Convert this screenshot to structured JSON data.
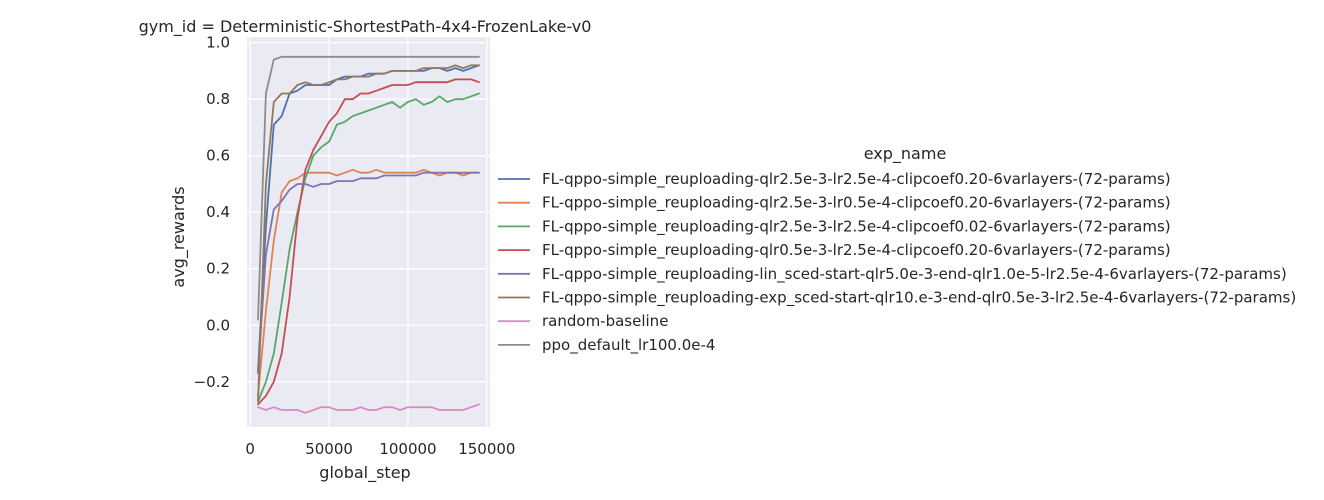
{
  "chart_data": {
    "type": "line",
    "title": "gym_id = Deterministic-ShortestPath-4x4-FrozenLake-v0",
    "xlabel": "global_step",
    "ylabel": "avg_rewards",
    "xlim": [
      -2000,
      152000
    ],
    "ylim": [
      -0.36,
      1.02
    ],
    "xticks": [
      0,
      50000,
      100000,
      150000
    ],
    "xtick_labels": [
      "0",
      "50000",
      "100000",
      "150000"
    ],
    "yticks": [
      -0.2,
      0.0,
      0.2,
      0.4,
      0.6,
      0.8,
      1.0
    ],
    "ytick_labels": [
      "−0.2",
      "0.0",
      "0.2",
      "0.4",
      "0.6",
      "0.8",
      "1.0"
    ],
    "grid": true,
    "legend_title": "exp_name",
    "legend_position": "right",
    "x": [
      5000,
      10000,
      15000,
      20000,
      25000,
      30000,
      35000,
      40000,
      45000,
      50000,
      55000,
      60000,
      65000,
      70000,
      75000,
      80000,
      85000,
      90000,
      95000,
      100000,
      105000,
      110000,
      115000,
      120000,
      125000,
      130000,
      135000,
      140000,
      145000
    ],
    "series": [
      {
        "name": "FL-qppo-simple_reuploading-qlr2.5e-3-lr2.5e-4-clipcoef0.20-6varlayers-(72-params)",
        "color": "#4c72b0",
        "values": [
          -0.16,
          0.35,
          0.71,
          0.74,
          0.82,
          0.83,
          0.85,
          0.85,
          0.85,
          0.85,
          0.87,
          0.88,
          0.88,
          0.88,
          0.89,
          0.89,
          0.89,
          0.9,
          0.9,
          0.9,
          0.9,
          0.9,
          0.91,
          0.91,
          0.9,
          0.91,
          0.9,
          0.91,
          0.92
        ]
      },
      {
        "name": "FL-qppo-simple_reuploading-qlr2.5e-3-lr0.5e-4-clipcoef0.20-6varlayers-(72-params)",
        "color": "#dd8452",
        "values": [
          -0.25,
          0.05,
          0.3,
          0.47,
          0.51,
          0.52,
          0.54,
          0.54,
          0.54,
          0.54,
          0.53,
          0.54,
          0.55,
          0.54,
          0.54,
          0.55,
          0.54,
          0.54,
          0.54,
          0.54,
          0.54,
          0.55,
          0.54,
          0.53,
          0.54,
          0.54,
          0.53,
          0.54,
          0.54
        ]
      },
      {
        "name": "FL-qppo-simple_reuploading-qlr2.5e-3-lr2.5e-4-clipcoef0.02-6varlayers-(72-params)",
        "color": "#55a868",
        "values": [
          -0.27,
          -0.2,
          -0.1,
          0.08,
          0.27,
          0.4,
          0.52,
          0.6,
          0.63,
          0.65,
          0.71,
          0.72,
          0.74,
          0.75,
          0.76,
          0.77,
          0.78,
          0.79,
          0.77,
          0.79,
          0.8,
          0.78,
          0.79,
          0.81,
          0.79,
          0.8,
          0.8,
          0.81,
          0.82
        ]
      },
      {
        "name": "FL-qppo-simple_reuploading-qlr0.5e-3-lr2.5e-4-clipcoef0.20-6varlayers-(72-params)",
        "color": "#c44e52",
        "values": [
          -0.28,
          -0.25,
          -0.2,
          -0.1,
          0.1,
          0.38,
          0.55,
          0.62,
          0.67,
          0.72,
          0.75,
          0.8,
          0.8,
          0.82,
          0.82,
          0.83,
          0.84,
          0.85,
          0.85,
          0.85,
          0.86,
          0.86,
          0.86,
          0.86,
          0.86,
          0.87,
          0.87,
          0.87,
          0.86
        ]
      },
      {
        "name": "FL-qppo-simple_reuploading-lin_sced-start-qlr5.0e-3-end-qlr1.0e-5-lr2.5e-4-6varlayers-(72-params)",
        "color": "#8172b3",
        "values": [
          -0.17,
          0.25,
          0.41,
          0.44,
          0.48,
          0.5,
          0.5,
          0.49,
          0.5,
          0.5,
          0.51,
          0.51,
          0.51,
          0.52,
          0.52,
          0.52,
          0.53,
          0.53,
          0.53,
          0.53,
          0.53,
          0.54,
          0.54,
          0.54,
          0.54,
          0.54,
          0.54,
          0.54,
          0.54
        ]
      },
      {
        "name": "FL-qppo-simple_reuploading-exp_sced-start-qlr10.e-3-end-qlr0.5e-3-lr2.5e-4-6varlayers-(72-params)",
        "color": "#937860",
        "values": [
          -0.27,
          0.5,
          0.79,
          0.82,
          0.82,
          0.85,
          0.86,
          0.85,
          0.85,
          0.86,
          0.87,
          0.87,
          0.88,
          0.88,
          0.88,
          0.89,
          0.89,
          0.9,
          0.9,
          0.9,
          0.9,
          0.91,
          0.91,
          0.91,
          0.91,
          0.92,
          0.91,
          0.92,
          0.92
        ]
      },
      {
        "name": "random-baseline",
        "color": "#da8bc3",
        "values": [
          -0.29,
          -0.3,
          -0.29,
          -0.3,
          -0.3,
          -0.3,
          -0.31,
          -0.3,
          -0.29,
          -0.29,
          -0.3,
          -0.3,
          -0.3,
          -0.29,
          -0.3,
          -0.3,
          -0.29,
          -0.29,
          -0.3,
          -0.29,
          -0.29,
          -0.29,
          -0.29,
          -0.3,
          -0.3,
          -0.3,
          -0.3,
          -0.29,
          -0.28
        ]
      },
      {
        "name": "ppo_default_lr100.0e-4",
        "color": "#8c8c8c",
        "values": [
          0.02,
          0.82,
          0.94,
          0.95,
          0.95,
          0.95,
          0.95,
          0.95,
          0.95,
          0.95,
          0.95,
          0.95,
          0.95,
          0.95,
          0.95,
          0.95,
          0.95,
          0.95,
          0.95,
          0.95,
          0.95,
          0.95,
          0.95,
          0.95,
          0.95,
          0.95,
          0.95,
          0.95,
          0.95
        ]
      }
    ]
  }
}
